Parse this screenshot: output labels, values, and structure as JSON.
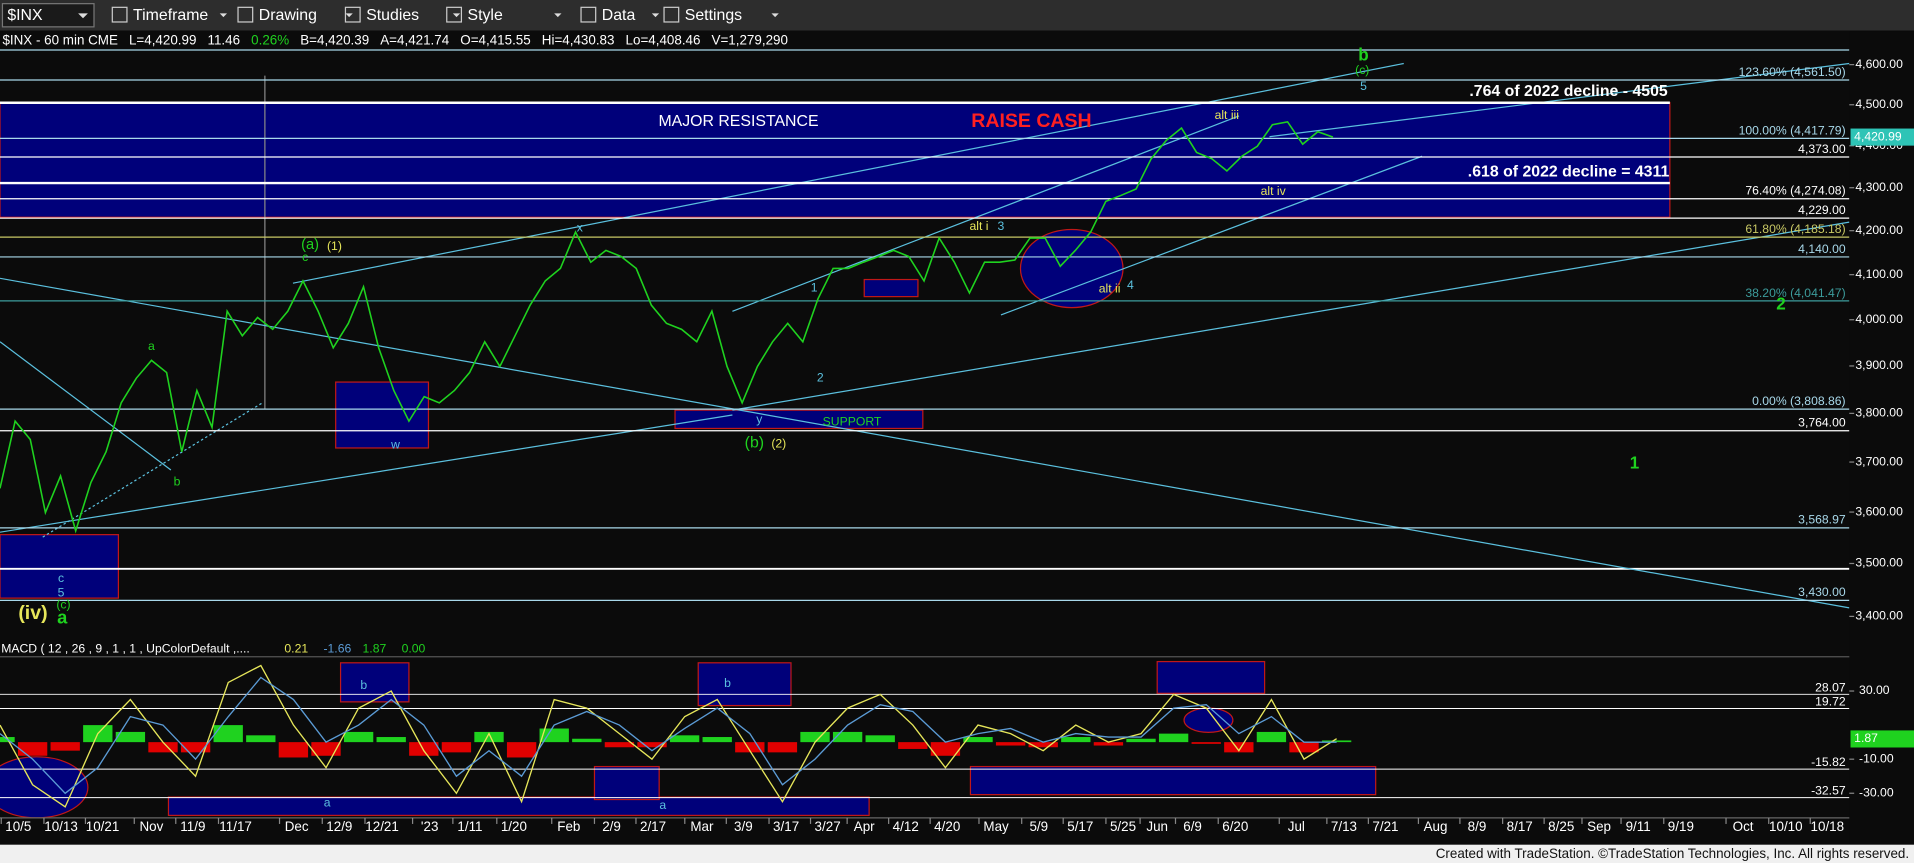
{
  "toolbar": {
    "symbol": "$INX",
    "menus": [
      "Timeframe",
      "Drawing",
      "Studies",
      "Style",
      "Data",
      "Settings"
    ]
  },
  "header": {
    "symbol": "$INX - 60 min CME",
    "fields": [
      "L=4,420.99",
      "11.46",
      "0.26%",
      "B=4,420.39",
      "A=4,421.74",
      "O=4,415.55",
      "Hi=4,430.83",
      "Lo=4,408.46",
      "V=1,279,290"
    ]
  },
  "chart_data": [
    {
      "type": "line",
      "log_scale": true,
      "ylim": [
        3366,
        4640
      ],
      "yticks": [
        {
          "value": 4600,
          "label": "4,600.00"
        },
        {
          "value": 4500,
          "label": "4,500.00"
        },
        {
          "value": 4400,
          "label": "4,400.00"
        },
        {
          "value": 4300,
          "label": "4,300.00"
        },
        {
          "value": 4200,
          "label": "4,200.00"
        },
        {
          "value": 4100,
          "label": "4,100.00"
        },
        {
          "value": 4000,
          "label": "4,000.00"
        },
        {
          "value": 3900,
          "label": "3,900.00"
        },
        {
          "value": 3800,
          "label": "3,800.00"
        },
        {
          "value": 3700,
          "label": "3,700.00"
        },
        {
          "value": 3600,
          "label": "3,600.00"
        },
        {
          "value": 3500,
          "label": "3,500.00"
        },
        {
          "value": 3400,
          "label": "3,400.00"
        }
      ],
      "series": [
        {
          "color": "#1fd21f",
          "values": [
            3647,
            3784,
            3746,
            3599,
            3672,
            3563,
            3659,
            3721,
            3822,
            3874,
            3912,
            3886,
            3721,
            3848,
            3771,
            4019,
            3965,
            4005,
            3979,
            4019,
            4086,
            4019,
            3939,
            3992,
            4073,
            3939,
            3848,
            3784,
            3835,
            3822,
            3848,
            3886,
            3952,
            3899,
            3965,
            4032,
            4086,
            4114,
            4197,
            4128,
            4155,
            4141,
            4114,
            4032,
            3992,
            3979,
            3952,
            4019,
            3899,
            3822,
            3899,
            3952,
            3992,
            3952,
            4046,
            4114,
            4114,
            4128,
            4141,
            4155,
            4141,
            4086,
            4183,
            4128,
            4059,
            4128,
            4128,
            4133,
            4183,
            4183,
            4119,
            4155,
            4197,
            4268,
            4282,
            4297,
            4369,
            4413,
            4443,
            4384,
            4369,
            4340,
            4375,
            4399,
            4451,
            4458,
            4404,
            4434,
            4421
          ]
        }
      ],
      "levels": [
        {
          "value": 4561.5,
          "label": "123.60% (4,561.50)",
          "color": "#a8d8ea"
        },
        {
          "value": 4417.79,
          "label": "100.00% (4,417.79)",
          "color": "#a8d8ea"
        },
        {
          "value": 4373,
          "label": "4,373.00",
          "color": "#ffffff"
        },
        {
          "value": 4274.08,
          "label": "76.40% (4,274.08)",
          "color": "#ffffff"
        },
        {
          "value": 4229,
          "label": "4,229.00",
          "color": "#ffffff"
        },
        {
          "value": 4185.18,
          "label": "61.80% (4,185.18)",
          "color": "#c8c864"
        },
        {
          "value": 4140,
          "label": "4,140.00",
          "color": "#a8d8ea"
        },
        {
          "value": 4041.47,
          "label": "38.20% (4,041.47)",
          "color": "#3c9c9c"
        },
        {
          "value": 3808.86,
          "label": "0.00% (3,808.86)",
          "color": "#a8d8ea"
        },
        {
          "value": 3764,
          "label": "3,764.00",
          "color": "#ffffff"
        },
        {
          "value": 3568.97,
          "label": "3,568.97",
          "color": "#a8d8ea"
        },
        {
          "value": 3430,
          "label": "3,430.00",
          "color": "#a8d8ea"
        }
      ],
      "decline_levels": [
        {
          "value": 4505,
          "label": ".764 of 2022 decline - 4505"
        },
        {
          "value": 4311,
          "label": ".618 of 2022 decline = 4311"
        }
      ],
      "last_price": {
        "value": 4420.99,
        "label": "4,420.99",
        "color": "#2ec4b6"
      },
      "annotations": [
        {
          "text": "b",
          "color": "#1fd21f"
        },
        {
          "text": "(c)",
          "color": "#1fd21f"
        },
        {
          "text": "5",
          "color": "#5bc0de"
        },
        {
          "text": "alt iii",
          "color": "#e6e65a"
        },
        {
          "text": "alt iv",
          "color": "#e6e65a"
        },
        {
          "text": "alt i",
          "color": "#e6e65a"
        },
        {
          "text": "3",
          "color": "#5bc0de"
        },
        {
          "text": "alt ii",
          "color": "#e6e65a"
        },
        {
          "text": "4",
          "color": "#5bc0de"
        },
        {
          "text": "x",
          "color": "#5bc0de"
        },
        {
          "text": "1",
          "color": "#5bc0de"
        },
        {
          "text": "2",
          "color": "#5bc0de"
        },
        {
          "text": "y",
          "color": "#5bc0de"
        },
        {
          "text": "(b)",
          "color": "#1fd21f"
        },
        {
          "text": "(2)",
          "color": "#e6e65a"
        },
        {
          "text": "(a)",
          "color": "#1fd21f"
        },
        {
          "text": "(1)",
          "color": "#e6e65a"
        },
        {
          "text": "c",
          "color": "#1fd21f"
        },
        {
          "text": "a",
          "color": "#1fd21f"
        },
        {
          "text": "b",
          "color": "#1fd21f"
        },
        {
          "text": "w",
          "color": "#5bc0de"
        },
        {
          "text": "c",
          "color": "#5bc0de"
        },
        {
          "text": "5",
          "color": "#5bc0de"
        },
        {
          "text": "(c)",
          "color": "#1fd21f"
        },
        {
          "text": "a",
          "color": "#1fd21f"
        },
        {
          "text": "(iv)",
          "color": "#e6e65a"
        },
        {
          "text": "2",
          "color": "#1fd21f"
        },
        {
          "text": "1",
          "color": "#1fd21f"
        },
        {
          "text": "MAJOR RESISTANCE",
          "color": "#ffffff"
        },
        {
          "text": "RAISE CASH",
          "color": "#ff2020"
        },
        {
          "text": "SUPPORT",
          "color": "#1fd21f"
        }
      ]
    },
    {
      "type": "macd",
      "title": "MACD ( 12 , 26 , 9 , 1 , 1 , UpColorDefault ,....",
      "study_values": [
        "0.21",
        "-1.66",
        "1.87",
        "0.00"
      ],
      "study_colors": [
        "#e6e65a",
        "#5b9bd5",
        "#1fd21f",
        "#1fd21f"
      ],
      "ylim": [
        -43,
        48
      ],
      "yticks": [
        {
          "value": 30,
          "label": "30.00"
        },
        {
          "value": -10,
          "label": "-10.00"
        },
        {
          "value": -30,
          "label": "-30.00"
        }
      ],
      "categories": [
        "10/5",
        "10/13",
        "10/21",
        "Nov",
        "11/9",
        "11/17",
        "Dec",
        "12/9",
        "12/21",
        "'23",
        "1/11",
        "1/20",
        "Feb",
        "2/9",
        "2/17",
        "Mar",
        "3/9",
        "3/17",
        "3/27",
        "Apr",
        "4/12",
        "4/20",
        "May",
        "5/9",
        "5/17",
        "5/25",
        "Jun",
        "6/9",
        "6/20",
        "Jul",
        "7/13",
        "7/21",
        "Aug",
        "8/9",
        "8/17",
        "8/25",
        "Sep",
        "9/11",
        "9/19",
        "Oct",
        "10/10",
        "10/18"
      ],
      "series": [
        {
          "color": "#e6e65a",
          "values": [
            10,
            -25,
            -38,
            5,
            25,
            0,
            -20,
            35,
            45,
            10,
            -15,
            20,
            30,
            -5,
            -30,
            5,
            -35,
            25,
            20,
            5,
            -10,
            15,
            25,
            -5,
            -35,
            0,
            20,
            28,
            10,
            -15,
            10,
            5,
            -5,
            10,
            0,
            5,
            28,
            20,
            -5,
            25,
            -10,
            2
          ]
        },
        {
          "color": "#5b9bd5",
          "values": [
            5,
            -10,
            -30,
            -15,
            15,
            10,
            -10,
            15,
            38,
            25,
            0,
            10,
            25,
            10,
            -20,
            -5,
            -20,
            10,
            18,
            10,
            -5,
            8,
            20,
            5,
            -25,
            -10,
            10,
            22,
            18,
            0,
            5,
            8,
            0,
            5,
            3,
            3,
            20,
            22,
            5,
            15,
            0,
            0
          ]
        }
      ],
      "histogram": {
        "up_color": "#1fd21f",
        "down_color": "#e00000",
        "values": [
          3,
          -8,
          -5,
          10,
          6,
          -6,
          -6,
          10,
          4,
          -9,
          -8,
          6,
          3,
          -8,
          -6,
          6,
          -9,
          8,
          2,
          -3,
          -3,
          4,
          3,
          -6,
          -6,
          6,
          6,
          4,
          -4,
          -8,
          3,
          -2,
          -3,
          3,
          -2,
          2,
          5,
          -1,
          -6,
          6,
          -6,
          1
        ]
      },
      "levels": [
        {
          "value": 28.07,
          "color": "#ffffff"
        },
        {
          "value": 19.72,
          "color": "#ffffff"
        },
        {
          "value": -15.82,
          "color": "#ffffff"
        },
        {
          "value": -32.57,
          "color": "#ffffff"
        }
      ],
      "last_value": {
        "value": 1.87,
        "color": "#1fd21f"
      },
      "annotations": [
        {
          "text": "b",
          "color": "#5bc0de"
        },
        {
          "text": "b",
          "color": "#5bc0de"
        },
        {
          "text": "a",
          "color": "#5bc0de"
        },
        {
          "text": "a",
          "color": "#5bc0de"
        }
      ]
    }
  ],
  "footer": "Created with TradeStation. ©TradeStation Technologies, Inc. All rights reserved."
}
